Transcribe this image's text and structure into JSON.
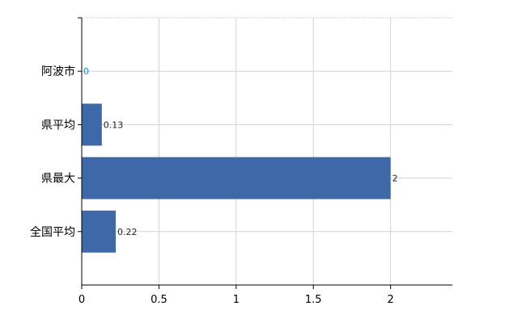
{
  "chart_data": {
    "type": "bar",
    "orientation": "horizontal",
    "categories": [
      "阿波市",
      "県平均",
      "県最大",
      "全国平均"
    ],
    "values": [
      0,
      0.13,
      2,
      0.22
    ],
    "data_labels": [
      "0",
      "0.13",
      "2",
      "0.22"
    ],
    "xlim": [
      0,
      2.4
    ],
    "xticks": [
      0,
      0.5,
      1,
      1.5,
      2
    ],
    "xtick_labels": [
      "0",
      "0.5",
      "1",
      "1.5",
      "2"
    ],
    "grid": true,
    "bar_color": "#3f68a8",
    "label_color_zero": "#1a7fd0",
    "title": "",
    "xlabel": "",
    "ylabel": ""
  }
}
